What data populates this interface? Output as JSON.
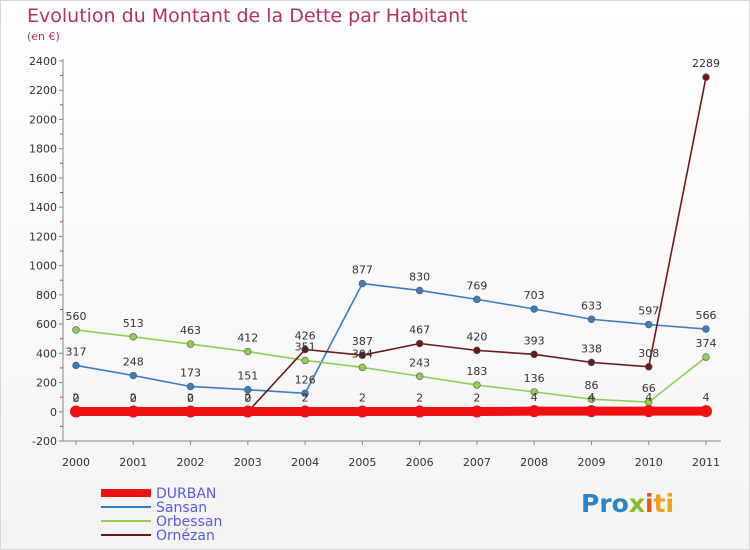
{
  "header": {
    "title": "Evolution du Montant de la Dette par Habitant",
    "subtitle": "(en €)"
  },
  "logo": {
    "part1": "Pro",
    "part2": "x",
    "part3": "i",
    "part4": "ti"
  },
  "chart_data": {
    "type": "line",
    "title": "Evolution du Montant de la Dette par Habitant",
    "subtitle": "(en €)",
    "xlabel": "",
    "ylabel": "",
    "x": [
      "2000",
      "2001",
      "2002",
      "2003",
      "2004",
      "2005",
      "2006",
      "2007",
      "2008",
      "2009",
      "2010",
      "2011"
    ],
    "ylim": [
      -200,
      2400
    ],
    "yticks": [
      -200,
      0,
      200,
      400,
      600,
      800,
      1000,
      1200,
      1400,
      1600,
      1800,
      2000,
      2200,
      2400
    ],
    "grid": false,
    "legend": "bottom-left",
    "series": [
      {
        "name": "Sansan",
        "color": "#3a7dc0",
        "values": [
          317,
          248,
          173,
          151,
          126,
          877,
          830,
          769,
          703,
          633,
          597,
          566
        ]
      },
      {
        "name": "Orbessan",
        "color": "#8fd14f",
        "values": [
          560,
          513,
          463,
          412,
          351,
          304,
          243,
          183,
          136,
          86,
          66,
          374
        ]
      },
      {
        "name": "Ornézan",
        "color": "#6b1a1a",
        "values": [
          0,
          0,
          0,
          0,
          426,
          387,
          467,
          420,
          393,
          338,
          308,
          2289
        ]
      },
      {
        "name": "DURBAN",
        "color": "#ee1111",
        "values": [
          2,
          2,
          2,
          2,
          2,
          2,
          2,
          2,
          4,
          4,
          4,
          4
        ]
      }
    ],
    "data_labels": [
      {
        "series": 0,
        "labels": [
          "317",
          "248",
          "173",
          "151",
          "126",
          "877",
          "830",
          "769",
          "703",
          "633",
          "597",
          "566"
        ]
      },
      {
        "series": 1,
        "labels": [
          "560",
          "513",
          "463",
          "412",
          "351",
          "304",
          "243",
          "183",
          "136",
          "86",
          "66",
          "374"
        ]
      },
      {
        "series": 2,
        "labels": [
          "0",
          "0",
          "0",
          "0",
          "426",
          "387",
          "467",
          "420",
          "393",
          "338",
          "308",
          "2289"
        ]
      },
      {
        "series": 3,
        "labels": [
          "2",
          "2",
          "2",
          "2",
          "2",
          "2",
          "2",
          "2",
          "4",
          "4",
          "4",
          "4"
        ]
      }
    ],
    "legend_order": [
      3,
      0,
      1,
      2
    ]
  }
}
